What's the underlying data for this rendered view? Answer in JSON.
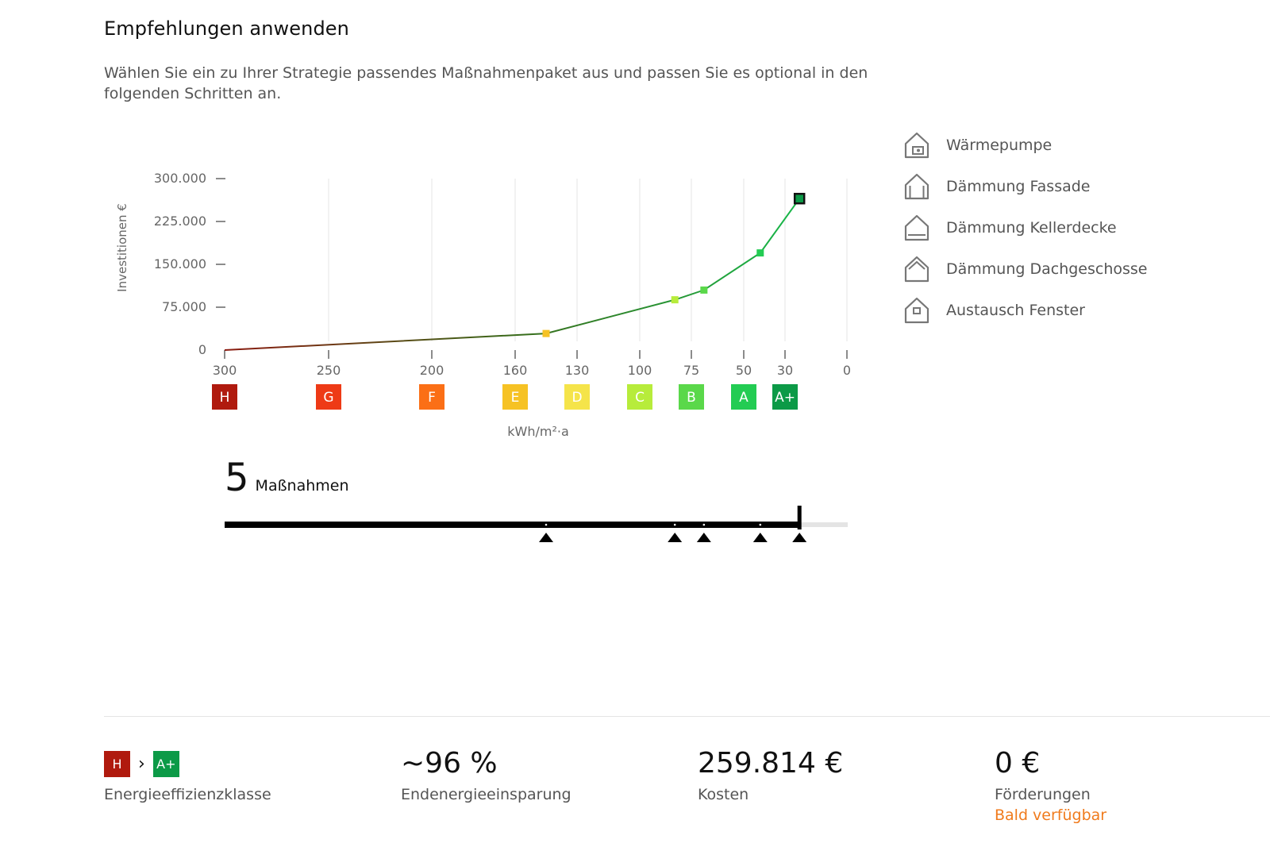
{
  "header": {
    "title": "Empfehlungen anwenden",
    "description": "Wählen Sie ein zu Ihrer Strategie passendes Maßnahmenpaket aus und passen Sie es optional in den folgenden Schritten an."
  },
  "legend": {
    "items": [
      {
        "label": "Wärmepumpe",
        "icon": "heat-pump-house-icon"
      },
      {
        "label": "Dämmung Fassade",
        "icon": "facade-insulation-house-icon"
      },
      {
        "label": "Dämmung Kellerdecke",
        "icon": "basement-insulation-house-icon"
      },
      {
        "label": "Dämmung Dachgeschosse",
        "icon": "roof-insulation-house-icon"
      },
      {
        "label": "Austausch Fenster",
        "icon": "window-house-icon"
      }
    ]
  },
  "chart_data": {
    "type": "line",
    "title": "",
    "ylabel": "Investitionen €",
    "xlabel": "kWh/m²·a",
    "y_ticks": [
      {
        "value": 0,
        "label": "0"
      },
      {
        "value": 75000,
        "label": "75.000"
      },
      {
        "value": 150000,
        "label": "150.000"
      },
      {
        "value": 225000,
        "label": "225.000"
      },
      {
        "value": 300000,
        "label": "300.000"
      }
    ],
    "ylim": [
      0,
      300000
    ],
    "x_ticks": [
      {
        "label": "300",
        "class": "H",
        "color": "#b01a0e"
      },
      {
        "label": "250",
        "class": "G",
        "color": "#ee3a16"
      },
      {
        "label": "200",
        "class": "F",
        "color": "#fb6f16"
      },
      {
        "label": "160",
        "class": "E",
        "color": "#f6c224"
      },
      {
        "label": "130",
        "class": "D",
        "color": "#f5e44a"
      },
      {
        "label": "100",
        "class": "C",
        "color": "#b7ec3b"
      },
      {
        "label": "75",
        "class": "B",
        "color": "#5ad84a"
      },
      {
        "label": "50",
        "class": "A",
        "color": "#23cc53"
      },
      {
        "label": "30",
        "class": "A+",
        "color": "#0c9a47"
      },
      {
        "label": "0",
        "class": "",
        "color": ""
      }
    ],
    "grid": true,
    "series": [
      {
        "points": [
          {
            "x": 300,
            "y": 0
          },
          {
            "x": 145,
            "y": 29000
          },
          {
            "x": 83,
            "y": 88000
          },
          {
            "x": 69,
            "y": 105000
          },
          {
            "x": 42,
            "y": 170000
          },
          {
            "x": 23,
            "y": 265000
          }
        ],
        "marker_colors": [
          "",
          "#f6c224",
          "#b7ec3b",
          "#5ad84a",
          "#23cc53",
          "#0c9a47"
        ]
      }
    ]
  },
  "slider": {
    "count": "5",
    "unit": "Maßnahmen",
    "stops": [
      145,
      83,
      69,
      42,
      23
    ],
    "selected_stop": 5
  },
  "kpis": {
    "efficiency": {
      "from": "H",
      "to": "A+",
      "from_color": "#b01a0e",
      "to_color": "#0c9a47",
      "label": "Energieeffizienzklasse"
    },
    "savings": {
      "value": "~96 %",
      "label": "Endenergieeinsparung"
    },
    "cost": {
      "value": "259.814 €",
      "label": "Kosten"
    },
    "funding": {
      "value": "0 €",
      "label": "Förderungen",
      "sub": "Bald verfügbar"
    }
  }
}
